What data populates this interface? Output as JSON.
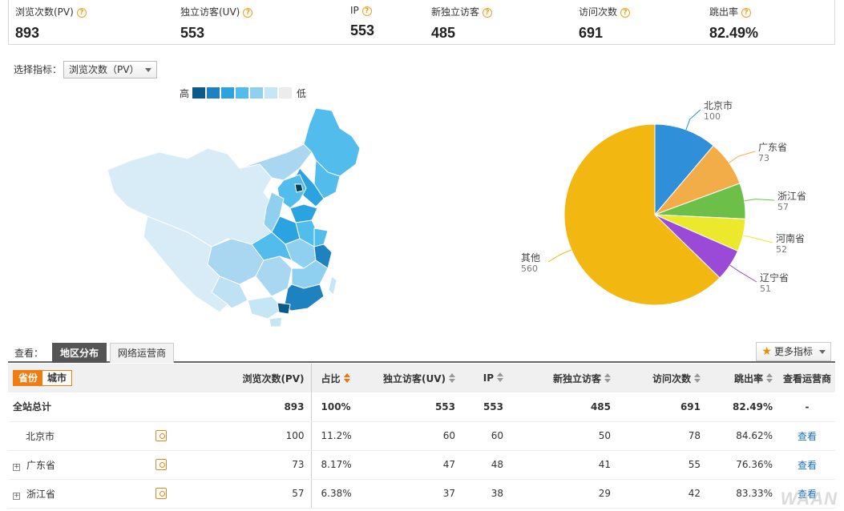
{
  "summary": [
    {
      "label": "浏览次数(PV)",
      "value": "893"
    },
    {
      "label": "独立访客(UV)",
      "value": "553"
    },
    {
      "label": "IP",
      "value": "553"
    },
    {
      "label": "新独立访客",
      "value": "485"
    },
    {
      "label": "访问次数",
      "value": "691"
    },
    {
      "label": "跳出率",
      "value": "82.49%"
    }
  ],
  "selector": {
    "label": "选择指标：",
    "value": "浏览次数（PV）"
  },
  "legend": {
    "high": "高",
    "low": "低",
    "colors": [
      "#0b5b8a",
      "#1f82c0",
      "#2aa3e0",
      "#52bdec",
      "#8fd0f0",
      "#c5e6f5",
      "#ececec"
    ]
  },
  "chart_data": {
    "type": "pie",
    "slices": [
      {
        "name": "北京市",
        "value": 100,
        "color": "#2f8fd8"
      },
      {
        "name": "广东省",
        "value": 73,
        "color": "#f2ad48"
      },
      {
        "name": "浙江省",
        "value": 57,
        "color": "#6cc04a"
      },
      {
        "name": "河南省",
        "value": 52,
        "color": "#ece82b"
      },
      {
        "name": "辽宁省",
        "value": 51,
        "color": "#9a4ad6"
      },
      {
        "name": "其他",
        "value": 560,
        "color": "#f2b711"
      }
    ]
  },
  "view": {
    "label": "查看：",
    "tabs": [
      "地区分布",
      "网络运营商"
    ],
    "more": "更多指标"
  },
  "table": {
    "seg": [
      "省份",
      "城市"
    ],
    "headers": [
      "浏览次数(PV)",
      "占比",
      "独立访客(UV)",
      "IP",
      "新独立访客",
      "访问次数",
      "跳出率",
      "查看运营商"
    ],
    "total": {
      "name": "全站总计",
      "pv": "893",
      "ratio": "100%",
      "uv": "553",
      "ip": "553",
      "new": "485",
      "visits": "691",
      "bounce": "82.49%",
      "op": "-"
    },
    "rows": [
      {
        "name": "北京市",
        "pv": "100",
        "ratio": "11.2%",
        "uv": "60",
        "ip": "60",
        "new": "50",
        "visits": "78",
        "bounce": "84.62%",
        "op": "查看"
      },
      {
        "name": "广东省",
        "pv": "73",
        "ratio": "8.17%",
        "uv": "47",
        "ip": "48",
        "new": "41",
        "visits": "55",
        "bounce": "76.36%",
        "op": "查看"
      },
      {
        "name": "浙江省",
        "pv": "57",
        "ratio": "6.38%",
        "uv": "37",
        "ip": "38",
        "new": "29",
        "visits": "42",
        "bounce": "83.33%",
        "op": "查看"
      }
    ]
  },
  "watermark": "WAAN"
}
